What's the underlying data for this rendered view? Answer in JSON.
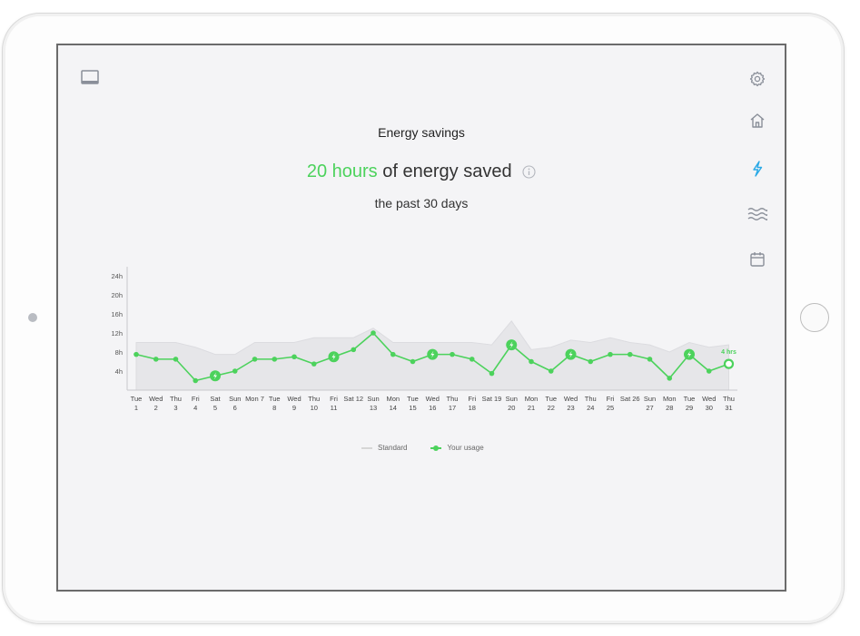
{
  "header": {
    "title": "Energy savings",
    "highlight": "20 hours",
    "headline_rest": "of energy saved",
    "subtitle": "the past 30 days"
  },
  "sidebar": {
    "items": [
      {
        "icon": "gear-icon"
      },
      {
        "icon": "home-icon"
      },
      {
        "icon": "lightning-icon",
        "active": true
      },
      {
        "icon": "waves-icon"
      },
      {
        "icon": "calendar-icon"
      }
    ]
  },
  "top_left_icon": "laptop-icon",
  "colors": {
    "accent_green": "#4cd25c",
    "active_blue": "#2aa9e6",
    "standard_area": "#e6e6e9",
    "icon_gray": "#8a8f99"
  },
  "legend": {
    "standard": "Standard",
    "usage": "Your usage"
  },
  "chart_data": {
    "type": "line",
    "title": "",
    "yticks": [
      "24h",
      "20h",
      "16h",
      "12h",
      "8h",
      "4h"
    ],
    "ylim": [
      0,
      26
    ],
    "x_days": [
      "Tue",
      "Wed",
      "Thu",
      "Fri",
      "Sat",
      "Sun",
      "Mon 7",
      "Tue",
      "Wed",
      "Thu",
      "Fri",
      "Sat 12",
      "Sun",
      "Mon",
      "Tue",
      "Wed",
      "Thu",
      "Fri",
      "Sat 19",
      "Sun",
      "Mon",
      "Tue",
      "Wed",
      "Thu",
      "Fri",
      "Sat 26",
      "Sun",
      "Mon",
      "Tue",
      "Wed",
      "Thu"
    ],
    "x_dates": [
      "1",
      "2",
      "3",
      "4",
      "5",
      "6",
      "",
      "8",
      "9",
      "10",
      "11",
      "",
      "13",
      "14",
      "15",
      "16",
      "17",
      "18",
      "",
      "20",
      "21",
      "22",
      "23",
      "24",
      "25",
      "",
      "27",
      "28",
      "29",
      "30",
      "31"
    ],
    "series": [
      {
        "name": "Standard",
        "values": [
          10,
          10,
          10,
          9,
          7.5,
          7.5,
          10,
          10,
          10,
          11,
          11,
          11,
          13,
          10,
          10,
          10,
          10,
          10,
          9.5,
          14.5,
          8.5,
          9,
          10.5,
          10,
          11,
          10,
          9.5,
          8,
          10,
          9,
          9.5
        ]
      },
      {
        "name": "Your usage",
        "values": [
          7.5,
          6.5,
          6.5,
          2,
          3,
          4,
          6.5,
          6.5,
          7,
          5.5,
          7,
          8.5,
          12,
          7.5,
          6,
          7.5,
          7.5,
          6.5,
          3.5,
          9.5,
          6,
          4,
          7.5,
          6,
          7.5,
          7.5,
          6.5,
          2.5,
          7.5,
          4,
          5.5
        ],
        "highlight_points": [
          4,
          10,
          15,
          19,
          22,
          28
        ],
        "last_label": "4 hrs"
      }
    ]
  }
}
